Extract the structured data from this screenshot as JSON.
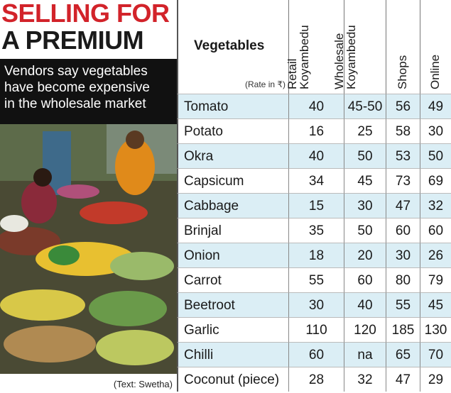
{
  "headline": {
    "line1": "SELLING FOR",
    "line2": "A PREMIUM"
  },
  "deck": {
    "line1": "Vendors say vegetables",
    "line2": "have become expensive",
    "line3": "in the wholesale market"
  },
  "credit": "(Text: Swetha)",
  "table": {
    "vegetables_header": "Vegetables",
    "rate_note": "(Rate in ₹)",
    "columns": [
      {
        "key": "retail",
        "label": "Retail\nKoyambedu"
      },
      {
        "key": "wholesale",
        "label": "Wholesale\nKoyambedu"
      },
      {
        "key": "shops",
        "label": "Shops"
      },
      {
        "key": "online",
        "label": "Online"
      }
    ],
    "rows": [
      {
        "name": "Tomato",
        "retail": "40",
        "wholesale": "45-50",
        "shops": "56",
        "online": "49"
      },
      {
        "name": "Potato",
        "retail": "16",
        "wholesale": "25",
        "shops": "58",
        "online": "30"
      },
      {
        "name": "Okra",
        "retail": "40",
        "wholesale": "50",
        "shops": "53",
        "online": "50"
      },
      {
        "name": "Capsicum",
        "retail": "34",
        "wholesale": "45",
        "shops": "73",
        "online": "69"
      },
      {
        "name": "Cabbage",
        "retail": "15",
        "wholesale": "30",
        "shops": "47",
        "online": "32"
      },
      {
        "name": "Brinjal",
        "retail": "35",
        "wholesale": "50",
        "shops": "60",
        "online": "60"
      },
      {
        "name": "Onion",
        "retail": "18",
        "wholesale": "20",
        "shops": "30",
        "online": "26"
      },
      {
        "name": "Carrot",
        "retail": "55",
        "wholesale": "60",
        "shops": "80",
        "online": "79"
      },
      {
        "name": "Beetroot",
        "retail": "30",
        "wholesale": "40",
        "shops": "55",
        "online": "45"
      },
      {
        "name": "Garlic",
        "retail": "110",
        "wholesale": "120",
        "shops": "185",
        "online": "130"
      },
      {
        "name": "Chilli",
        "retail": "60",
        "wholesale": "na",
        "shops": "65",
        "online": "70"
      },
      {
        "name": "Coconut (piece)",
        "retail": "28",
        "wholesale": "32",
        "shops": "47",
        "online": "29"
      }
    ]
  }
}
